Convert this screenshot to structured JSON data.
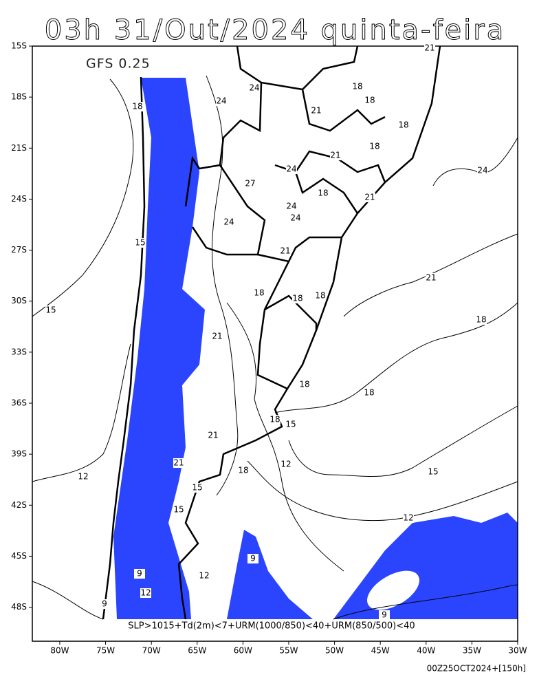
{
  "title": "03h 31/Out/2024 quinta-feira",
  "model": "GFS 0.25",
  "caption": "SLP>1015+Td(2m)<7+URM(1000/850)<40+URM(850/500)<40",
  "footer": "00Z25OCT2024+[150h]",
  "map": {
    "xlim": [
      -83,
      -30
    ],
    "ylim": [
      -50,
      -15
    ],
    "lat_ticks": [
      {
        "value": -15,
        "label": "15S"
      },
      {
        "value": -18,
        "label": "18S"
      },
      {
        "value": -21,
        "label": "21S"
      },
      {
        "value": -24,
        "label": "24S"
      },
      {
        "value": -27,
        "label": "27S"
      },
      {
        "value": -30,
        "label": "30S"
      },
      {
        "value": -33,
        "label": "33S"
      },
      {
        "value": -36,
        "label": "36S"
      },
      {
        "value": -39,
        "label": "39S"
      },
      {
        "value": -42,
        "label": "42S"
      },
      {
        "value": -45,
        "label": "45S"
      },
      {
        "value": -48,
        "label": "48S"
      }
    ],
    "lon_ticks": [
      {
        "value": -80,
        "label": "80W"
      },
      {
        "value": -75,
        "label": "75W"
      },
      {
        "value": -70,
        "label": "70W"
      },
      {
        "value": -65,
        "label": "65W"
      },
      {
        "value": -60,
        "label": "60W"
      },
      {
        "value": -55,
        "label": "55W"
      },
      {
        "value": -50,
        "label": "50W"
      },
      {
        "value": -45,
        "label": "45W"
      },
      {
        "value": -40,
        "label": "40W"
      },
      {
        "value": -35,
        "label": "35W"
      },
      {
        "value": -30,
        "label": "30W"
      }
    ],
    "contour_labels": [
      18,
      24,
      24,
      21,
      18,
      18,
      21,
      18,
      21,
      18,
      24,
      27,
      24,
      24,
      24,
      24,
      21,
      18,
      21,
      15,
      21,
      18,
      18,
      18,
      15,
      18,
      21,
      18,
      18,
      18,
      15,
      21,
      12,
      18,
      15,
      12,
      12,
      12,
      9,
      9,
      12,
      9,
      9,
      15,
      15,
      21
    ]
  }
}
